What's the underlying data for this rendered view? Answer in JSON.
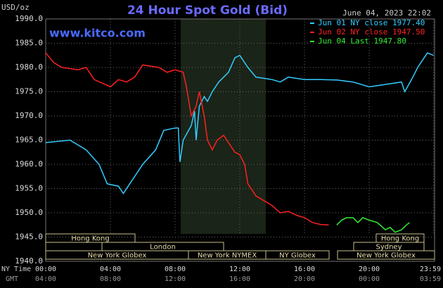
{
  "chart_data": {
    "type": "line",
    "title": "24 Hour Spot Gold (Bid)",
    "y_unit": "USD/oz",
    "site": "www.kitco.com",
    "date": "June 04, 2023 22:02",
    "x_label_ny": "NY Time",
    "x_label_gmt": "GMT",
    "xlim": [
      0,
      24
    ],
    "ylim": [
      1940,
      1990
    ],
    "grid": true,
    "yticks": [
      {
        "value": 1990,
        "label": "1990.0"
      },
      {
        "value": 1985,
        "label": "1985.0"
      },
      {
        "value": 1980,
        "label": "1980.0"
      },
      {
        "value": 1975,
        "label": "1975.0"
      },
      {
        "value": 1970,
        "label": "1970.0"
      },
      {
        "value": 1965,
        "label": "1965.0"
      },
      {
        "value": 1960,
        "label": "1960.0"
      },
      {
        "value": 1955,
        "label": "1955.0"
      },
      {
        "value": 1950,
        "label": "1950.0"
      },
      {
        "value": 1945,
        "label": "1945.0"
      },
      {
        "value": 1940,
        "label": "1940.0"
      }
    ],
    "xticks": [
      {
        "value": 0,
        "label": "00:00"
      },
      {
        "value": 4,
        "label": "04:00"
      },
      {
        "value": 8,
        "label": "08:00"
      },
      {
        "value": 12,
        "label": "12:00"
      },
      {
        "value": 16,
        "label": "16:00"
      },
      {
        "value": 20,
        "label": "20:00"
      },
      {
        "value": 23.98,
        "label": "23:59"
      }
    ],
    "gmt_labels": [
      "04:00",
      "08:00",
      "12:00",
      "16:00",
      "20:00",
      "00:00",
      "03:59"
    ],
    "sessions": [
      {
        "label": "Hong Kong"
      },
      {
        "label": "London"
      },
      {
        "label": "New York Globex"
      },
      {
        "label": "New York NYMEX"
      },
      {
        "label": "NY Globex"
      },
      {
        "label": "Hong Kong"
      },
      {
        "label": "Sydney"
      },
      {
        "label": "New York Globex"
      }
    ],
    "series": [
      {
        "name": "Jun 01 NY close 1977.40",
        "color": "#33ccff",
        "x": [
          0,
          1.5,
          2.5,
          3.3,
          3.8,
          4.5,
          4.8,
          5.2,
          6,
          6.8,
          7.3,
          8,
          8.2,
          8.3,
          8.5,
          9,
          9.2,
          9.3,
          9.5,
          9.8,
          10,
          10.3,
          10.7,
          11,
          11.3,
          11.7,
          12,
          12.5,
          13,
          14,
          14.5,
          15,
          16,
          17,
          18,
          19,
          20,
          21,
          22,
          22.2,
          22.7,
          23,
          23.4,
          23.6,
          23.98
        ],
        "values": [
          1964.5,
          1965,
          1963,
          1960,
          1956,
          1955.5,
          1954,
          1956,
          1960,
          1963,
          1967,
          1967.5,
          1967.5,
          1960.5,
          1965,
          1968,
          1971,
          1965,
          1972,
          1974,
          1973,
          1975,
          1977,
          1978,
          1979,
          1982,
          1982.5,
          1980,
          1978,
          1977.5,
          1977,
          1978,
          1977.5,
          1977.5,
          1977.4,
          1977,
          1976,
          1976.5,
          1977,
          1975,
          1978,
          1980,
          1982,
          1983,
          1982.5
        ]
      },
      {
        "name": "Jun 02 NY close 1947.50",
        "color": "#ff2020",
        "x": [
          0,
          0.5,
          1,
          2,
          2.5,
          3,
          4,
          4.5,
          5,
          5.5,
          6,
          7,
          7.5,
          8,
          8.5,
          8.7,
          9,
          9.3,
          9.5,
          9.8,
          10,
          10.3,
          10.6,
          11,
          11.3,
          11.7,
          12,
          12.3,
          12.5,
          13,
          13.5,
          14,
          14.5,
          15,
          15.5,
          16,
          16.5,
          17,
          17.5
        ],
        "values": [
          1983,
          1981,
          1980,
          1979.5,
          1980,
          1977.5,
          1976,
          1977.5,
          1977,
          1978,
          1980.5,
          1980,
          1979,
          1979.5,
          1979,
          1976,
          1970,
          1972,
          1975,
          1970,
          1965,
          1963,
          1965,
          1966,
          1964.5,
          1962.5,
          1962,
          1960,
          1956,
          1953.5,
          1952.5,
          1951.5,
          1950,
          1950.3,
          1949.5,
          1949,
          1948,
          1947.6,
          1947.5
        ]
      },
      {
        "name": "Jun 04 Last 1947.80",
        "color": "#33ee33",
        "x": [
          18,
          18.3,
          18.6,
          19,
          19.3,
          19.6,
          20,
          20.5,
          21,
          21.3,
          21.6,
          22,
          22.3,
          22.5
        ],
        "values": [
          1947.5,
          1948.5,
          1949,
          1949,
          1948,
          1949,
          1948.5,
          1948,
          1946.5,
          1947,
          1946,
          1946.5,
          1947.5,
          1948
        ]
      }
    ]
  }
}
